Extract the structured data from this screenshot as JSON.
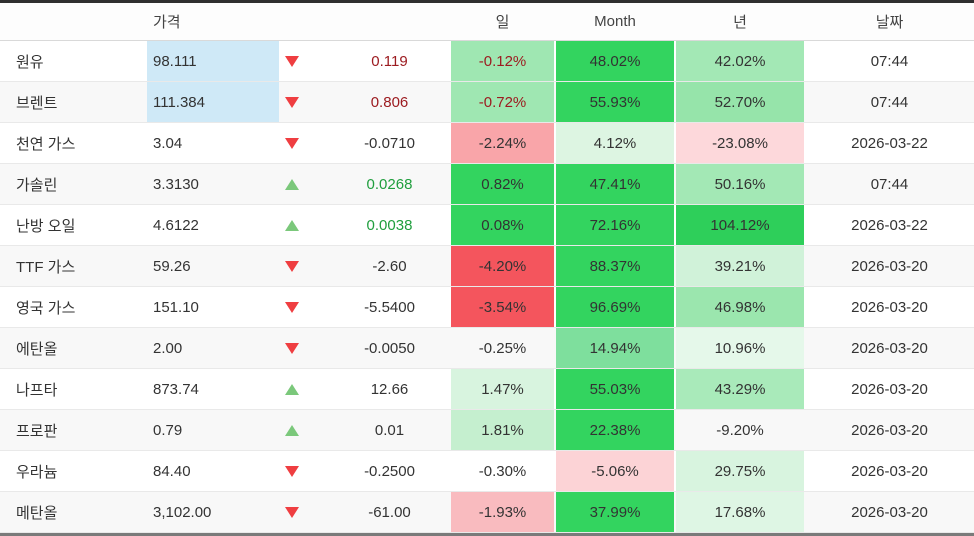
{
  "header": {
    "price_label": "가격",
    "day_label": "일",
    "month_label": "Month",
    "year_label": "년",
    "date_label": "날짜"
  },
  "colors": {
    "price_highlight": "#cfe9f7",
    "triangle_red": "#ef3e41",
    "triangle_green": "#7bc87b",
    "text_red": "#9c1b20",
    "text_green": "#1f9e3d",
    "text_dark": "#333333",
    "heat_green_strong": "#33d45f",
    "heat_red_strong": "#f4555d"
  },
  "rows": [
    {
      "name": "원유",
      "price": "98.111",
      "price_highlight": true,
      "direction": "down",
      "change": "0.119",
      "change_color": "red",
      "day": {
        "text": "-0.12%",
        "bg": "#9fe7b2",
        "color": "red"
      },
      "month": {
        "text": "48.02%",
        "bg": "#33d45f",
        "color": "dark"
      },
      "year": {
        "text": "42.02%",
        "bg": "#a3e8b5",
        "color": "dark"
      },
      "date": "07:44"
    },
    {
      "name": "브렌트",
      "price": "111.384",
      "price_highlight": true,
      "direction": "down",
      "change": "0.806",
      "change_color": "red",
      "day": {
        "text": "-0.72%",
        "bg": "#9fe7b2",
        "color": "red"
      },
      "month": {
        "text": "55.93%",
        "bg": "#33d45f",
        "color": "dark"
      },
      "year": {
        "text": "52.70%",
        "bg": "#96e4aa",
        "color": "dark"
      },
      "date": "07:44"
    },
    {
      "name": "천연 가스",
      "price": "3.04",
      "price_highlight": false,
      "direction": "down",
      "change": "-0.0710",
      "change_color": "dark",
      "day": {
        "text": "-2.24%",
        "bg": "#f9a5a9",
        "color": "dark"
      },
      "month": {
        "text": "4.12%",
        "bg": "#ddf5e2",
        "color": "dark"
      },
      "year": {
        "text": "-23.08%",
        "bg": "#fdd8db",
        "color": "dark"
      },
      "date": "2026-03-22"
    },
    {
      "name": "가솔린",
      "price": "3.3130",
      "price_highlight": false,
      "direction": "up",
      "change": "0.0268",
      "change_color": "green",
      "day": {
        "text": "0.82%",
        "bg": "#33d45f",
        "color": "dark"
      },
      "month": {
        "text": "47.41%",
        "bg": "#33d45f",
        "color": "dark"
      },
      "year": {
        "text": "50.16%",
        "bg": "#a3e8b5",
        "color": "dark"
      },
      "date": "07:44"
    },
    {
      "name": "난방 오일",
      "price": "4.6122",
      "price_highlight": false,
      "direction": "up",
      "change": "0.0038",
      "change_color": "green",
      "day": {
        "text": "0.08%",
        "bg": "#33d45f",
        "color": "dark"
      },
      "month": {
        "text": "72.16%",
        "bg": "#33d45f",
        "color": "dark"
      },
      "year": {
        "text": "104.12%",
        "bg": "#2ecf5a",
        "color": "dark"
      },
      "date": "2026-03-22"
    },
    {
      "name": "TTF 가스",
      "price": "59.26",
      "price_highlight": false,
      "direction": "down",
      "change": "-2.60",
      "change_color": "dark",
      "day": {
        "text": "-4.20%",
        "bg": "#f4555d",
        "color": "dark"
      },
      "month": {
        "text": "88.37%",
        "bg": "#33d45f",
        "color": "dark"
      },
      "year": {
        "text": "39.21%",
        "bg": "#d0f2d9",
        "color": "dark"
      },
      "date": "2026-03-20"
    },
    {
      "name": "영국 가스",
      "price": "151.10",
      "price_highlight": false,
      "direction": "down",
      "change": "-5.5400",
      "change_color": "dark",
      "day": {
        "text": "-3.54%",
        "bg": "#f4555d",
        "color": "dark"
      },
      "month": {
        "text": "96.69%",
        "bg": "#33d45f",
        "color": "dark"
      },
      "year": {
        "text": "46.98%",
        "bg": "#9be6ae",
        "color": "dark"
      },
      "date": "2026-03-20"
    },
    {
      "name": "에탄올",
      "price": "2.00",
      "price_highlight": false,
      "direction": "down",
      "change": "-0.0050",
      "change_color": "dark",
      "day": {
        "text": "-0.25%",
        "bg": null,
        "color": "dark"
      },
      "month": {
        "text": "14.94%",
        "bg": "#7edf9d",
        "color": "dark"
      },
      "year": {
        "text": "10.96%",
        "bg": "#e5f8ea",
        "color": "dark"
      },
      "date": "2026-03-20"
    },
    {
      "name": "나프타",
      "price": "873.74",
      "price_highlight": false,
      "direction": "up",
      "change": "12.66",
      "change_color": "dark",
      "day": {
        "text": "1.47%",
        "bg": "#d8f4df",
        "color": "dark"
      },
      "month": {
        "text": "55.03%",
        "bg": "#33d45f",
        "color": "dark"
      },
      "year": {
        "text": "43.29%",
        "bg": "#a9eaba",
        "color": "dark"
      },
      "date": "2026-03-20"
    },
    {
      "name": "프로판",
      "price": "0.79",
      "price_highlight": false,
      "direction": "up",
      "change": "0.01",
      "change_color": "dark",
      "day": {
        "text": "1.81%",
        "bg": "#c5efcf",
        "color": "dark"
      },
      "month": {
        "text": "22.38%",
        "bg": "#33d45f",
        "color": "dark"
      },
      "year": {
        "text": "-9.20%",
        "bg": null,
        "color": "dark"
      },
      "date": "2026-03-20"
    },
    {
      "name": "우라늄",
      "price": "84.40",
      "price_highlight": false,
      "direction": "down",
      "change": "-0.2500",
      "change_color": "dark",
      "day": {
        "text": "-0.30%",
        "bg": null,
        "color": "dark"
      },
      "month": {
        "text": "-5.06%",
        "bg": "#fcd3d6",
        "color": "dark"
      },
      "year": {
        "text": "29.75%",
        "bg": "#d8f4df",
        "color": "dark"
      },
      "date": "2026-03-20"
    },
    {
      "name": "메탄올",
      "price": "3,102.00",
      "price_highlight": false,
      "direction": "down",
      "change": "-61.00",
      "change_color": "dark",
      "day": {
        "text": "-1.93%",
        "bg": "#f9bbbf",
        "color": "dark"
      },
      "month": {
        "text": "37.99%",
        "bg": "#33d45f",
        "color": "dark"
      },
      "year": {
        "text": "17.68%",
        "bg": "#def6e4",
        "color": "dark"
      },
      "date": "2026-03-20"
    }
  ]
}
